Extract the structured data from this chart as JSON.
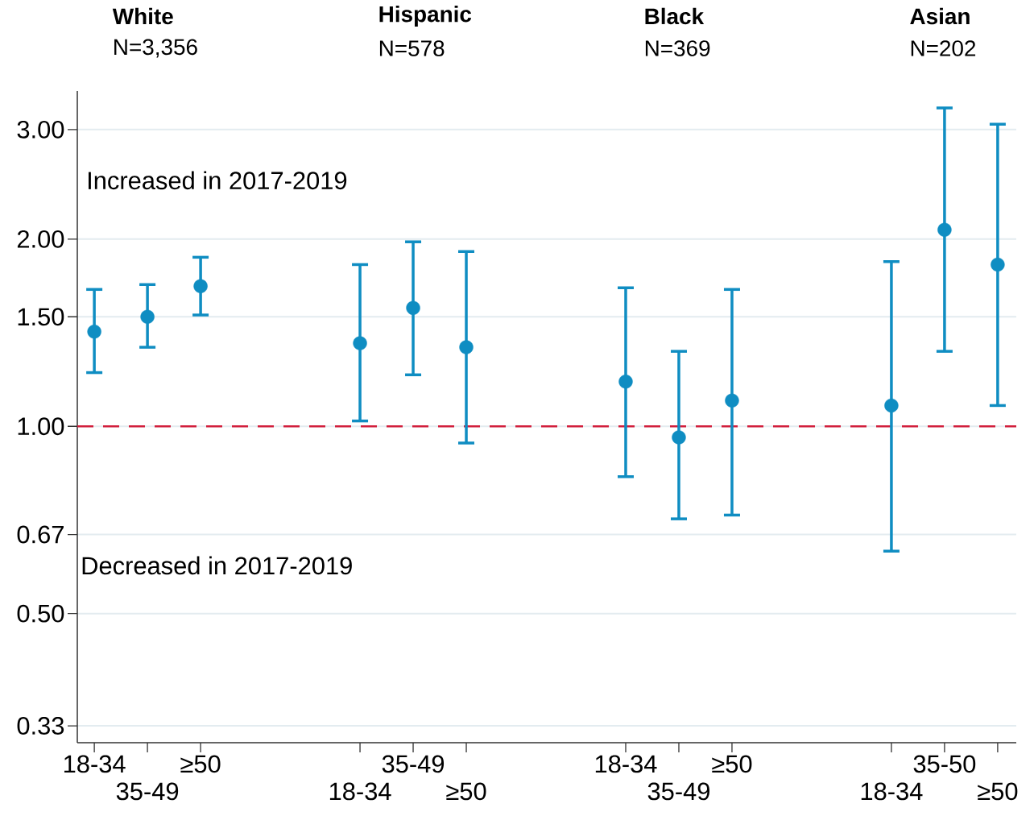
{
  "chart_data": {
    "type": "scatter",
    "categories": [
      "18-34",
      "35-49",
      "≥50",
      null,
      null,
      "18-34",
      "35-49",
      "≥50",
      null,
      null,
      "18-34",
      "35-49",
      "≥50",
      null,
      null,
      "18-34",
      "35-50",
      "≥50"
    ],
    "values": [
      1.42,
      1.5,
      1.68,
      null,
      null,
      1.36,
      1.55,
      1.34,
      null,
      null,
      1.18,
      0.96,
      1.1,
      null,
      null,
      1.08,
      2.07,
      1.82
    ],
    "errors": [
      [
        1.22,
        1.66
      ],
      [
        1.34,
        1.69
      ],
      [
        1.51,
        1.87
      ],
      null,
      null,
      [
        1.02,
        1.82
      ],
      [
        1.21,
        1.98
      ],
      [
        0.94,
        1.91
      ],
      null,
      null,
      [
        0.83,
        1.67
      ],
      [
        0.71,
        1.32
      ],
      [
        0.72,
        1.66
      ],
      null,
      null,
      [
        0.63,
        1.84
      ],
      [
        1.32,
        3.25
      ],
      [
        1.08,
        3.06
      ]
    ],
    "color": "#0f8dc2",
    "marker": "circle",
    "log": true,
    "ylim": [
      0.31,
      3.46
    ],
    "yticks": [
      {
        "value": 0.33,
        "label": "0.33"
      },
      {
        "value": 0.5,
        "label": "0.50"
      },
      {
        "value": 0.67,
        "label": "0.67"
      },
      {
        "value": 1,
        "label": "1.00"
      },
      {
        "value": 1.5,
        "label": "1.50"
      },
      {
        "value": 2,
        "label": "2.00"
      },
      {
        "value": 3,
        "label": "3.00"
      }
    ],
    "grid": "y",
    "ref_lines": [
      {
        "axis": "y",
        "value": 1,
        "color": "#d21f3c",
        "line_style": "dashed"
      }
    ],
    "annotations": [
      "White",
      "N=3,356",
      "Hispanic",
      "N=578",
      "Black",
      "N=369",
      "Asian",
      "N=202",
      "Increased in 2017-2019",
      "Decreased in 2017-2019"
    ]
  }
}
